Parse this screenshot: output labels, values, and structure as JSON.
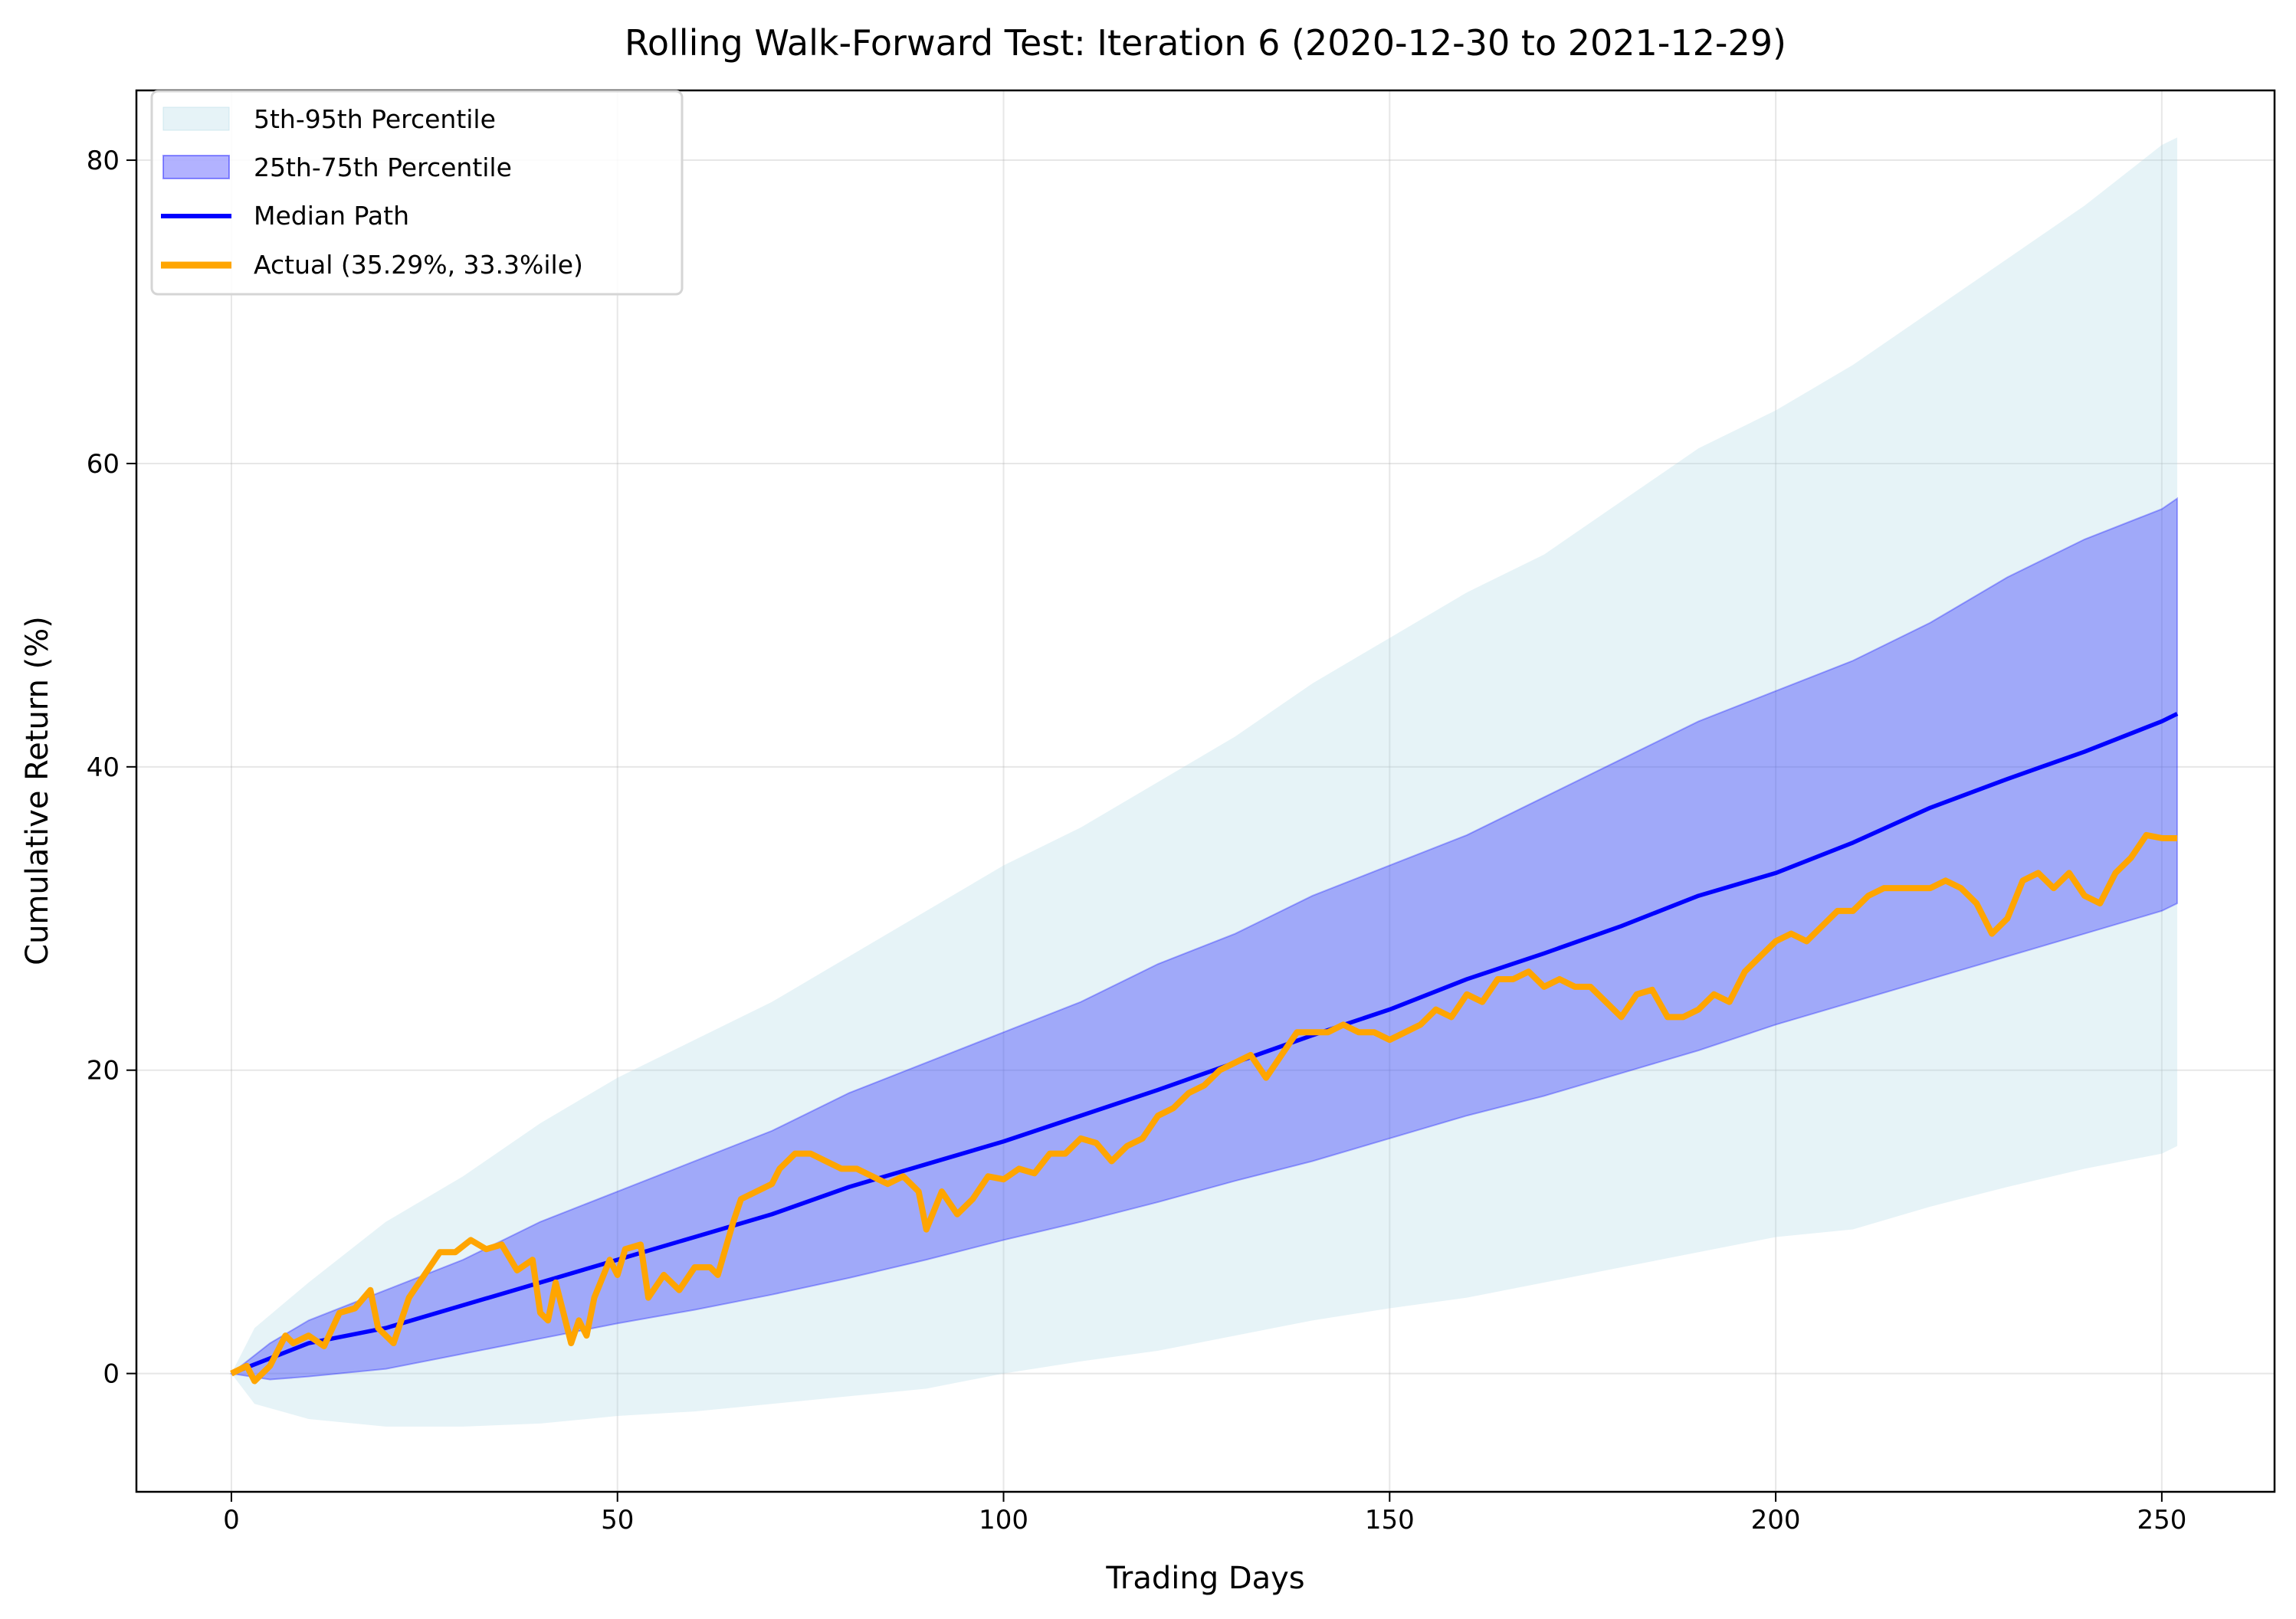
{
  "chart_data": {
    "type": "area",
    "title": "Rolling Walk-Forward Test: Iteration 6 (2020-12-30 to 2021-12-29)",
    "xlabel": "Trading Days",
    "ylabel": "Cumulative Return (%)",
    "xlim": [
      -12.3,
      264.6
    ],
    "ylim": [
      -7.8,
      84.6
    ],
    "xticks": [
      0,
      50,
      100,
      150,
      200,
      250
    ],
    "yticks": [
      0,
      20,
      40,
      60,
      80
    ],
    "grid": true,
    "legend_position": "top-left",
    "colors": {
      "band_outer": "#add8e6",
      "band_inner": "#0000ff",
      "median": "#0000ff",
      "actual": "#ffa500"
    },
    "bands": [
      {
        "name": "5th-95th Percentile",
        "x": [
          0,
          3,
          10,
          20,
          30,
          40,
          50,
          60,
          70,
          80,
          90,
          100,
          110,
          120,
          130,
          140,
          150,
          160,
          170,
          180,
          190,
          200,
          210,
          220,
          230,
          240,
          250,
          252
        ],
        "lower": [
          0,
          -2,
          -3,
          -3.5,
          -3.5,
          -3.3,
          -2.8,
          -2.5,
          -2,
          -1.5,
          -1,
          0,
          0.8,
          1.5,
          2.5,
          3.5,
          4.3,
          5,
          6,
          7,
          8,
          9,
          9.5,
          11,
          12.3,
          13.5,
          14.5,
          15
        ],
        "upper": [
          0,
          3,
          6,
          10,
          13,
          16.5,
          19.5,
          22,
          24.5,
          27.5,
          30.5,
          33.5,
          36,
          39,
          42,
          45.5,
          48.5,
          51.5,
          54,
          57.5,
          61,
          63.5,
          66.5,
          70,
          73.5,
          77,
          81,
          81.5
        ]
      },
      {
        "name": "25th-75th Percentile",
        "x": [
          0,
          5,
          10,
          20,
          30,
          40,
          50,
          60,
          70,
          80,
          90,
          100,
          110,
          120,
          130,
          140,
          150,
          160,
          170,
          180,
          190,
          200,
          210,
          220,
          230,
          240,
          250,
          252
        ],
        "lower": [
          0,
          -0.4,
          -0.2,
          0.3,
          1.3,
          2.3,
          3.3,
          4.2,
          5.2,
          6.3,
          7.5,
          8.8,
          10,
          11.3,
          12.7,
          14,
          15.5,
          17,
          18.3,
          19.8,
          21.3,
          23,
          24.5,
          26,
          27.5,
          29,
          30.5,
          31
        ],
        "upper": [
          0,
          2,
          3.5,
          5.5,
          7.5,
          10,
          12,
          14,
          16,
          18.5,
          20.5,
          22.5,
          24.5,
          27,
          29,
          31.5,
          33.5,
          35.5,
          38,
          40.5,
          43,
          45,
          47,
          49.5,
          52.5,
          55,
          57,
          57.7
        ]
      }
    ],
    "series": [
      {
        "name": "Median Path",
        "x": [
          0,
          10,
          20,
          30,
          40,
          50,
          60,
          70,
          80,
          90,
          100,
          110,
          120,
          130,
          140,
          150,
          160,
          170,
          180,
          190,
          200,
          210,
          220,
          230,
          240,
          250,
          252
        ],
        "y": [
          0,
          2,
          3,
          4.5,
          6,
          7.5,
          9,
          10.5,
          12.3,
          13.8,
          15.3,
          17,
          18.7,
          20.5,
          22.3,
          24,
          26,
          27.7,
          29.5,
          31.5,
          33,
          35,
          37.3,
          39.2,
          41,
          43,
          43.5
        ]
      },
      {
        "name": "Actual (35.29%, 33.3%ile)",
        "x": [
          0,
          2,
          3,
          5,
          7,
          8,
          10,
          12,
          14,
          16,
          18,
          19,
          21,
          23,
          25,
          27,
          29,
          31,
          33,
          35,
          37,
          39,
          40,
          41,
          42,
          44,
          45,
          46,
          47,
          49,
          50,
          51,
          53,
          54,
          56,
          58,
          60,
          62,
          63,
          65,
          66,
          68,
          70,
          71,
          73,
          75,
          77,
          79,
          81,
          83,
          85,
          87,
          89,
          90,
          92,
          94,
          96,
          98,
          100,
          102,
          104,
          106,
          108,
          110,
          112,
          114,
          116,
          118,
          120,
          122,
          124,
          126,
          128,
          130,
          132,
          134,
          136,
          138,
          140,
          142,
          144,
          146,
          148,
          150,
          152,
          154,
          156,
          158,
          160,
          162,
          164,
          166,
          168,
          170,
          172,
          174,
          176,
          178,
          180,
          182,
          184,
          186,
          188,
          190,
          192,
          194,
          196,
          198,
          200,
          202,
          204,
          206,
          208,
          210,
          212,
          214,
          216,
          218,
          220,
          222,
          224,
          226,
          228,
          230,
          232,
          234,
          236,
          238,
          240,
          242,
          244,
          246,
          248,
          250,
          252
        ],
        "y": [
          0,
          0.5,
          -0.5,
          0.5,
          2.5,
          2,
          2.5,
          1.8,
          4,
          4.3,
          5.5,
          3,
          2,
          5,
          6.5,
          8,
          8,
          8.8,
          8.2,
          8.5,
          6.8,
          7.5,
          4,
          3.5,
          6,
          2,
          3.5,
          2.5,
          5,
          7.5,
          6.5,
          8.2,
          8.5,
          5,
          6.5,
          5.5,
          7,
          7,
          6.5,
          10,
          11.5,
          12,
          12.5,
          13.5,
          14.5,
          14.5,
          14,
          13.5,
          13.5,
          13,
          12.5,
          13,
          12,
          9.5,
          12,
          10.5,
          11.5,
          13,
          12.8,
          13.5,
          13.2,
          14.5,
          14.5,
          15.5,
          15.2,
          14,
          15,
          15.5,
          17,
          17.5,
          18.5,
          19,
          20,
          20.5,
          21,
          19.5,
          21,
          22.5,
          22.5,
          22.5,
          23,
          22.5,
          22.5,
          22,
          22.5,
          23,
          24,
          23.5,
          25,
          24.5,
          26,
          26,
          26.5,
          25.5,
          26,
          25.5,
          25.5,
          24.5,
          23.5,
          25,
          25.3,
          23.5,
          23.5,
          24,
          25,
          24.5,
          26.5,
          27.5,
          28.5,
          29,
          28.5,
          29.5,
          30.5,
          30.5,
          31.5,
          32,
          32,
          32,
          32,
          32.5,
          32,
          31,
          29,
          30,
          32.5,
          33,
          32,
          33,
          31.5,
          31,
          33,
          34,
          35.5,
          35.3,
          35.29
        ]
      }
    ]
  }
}
